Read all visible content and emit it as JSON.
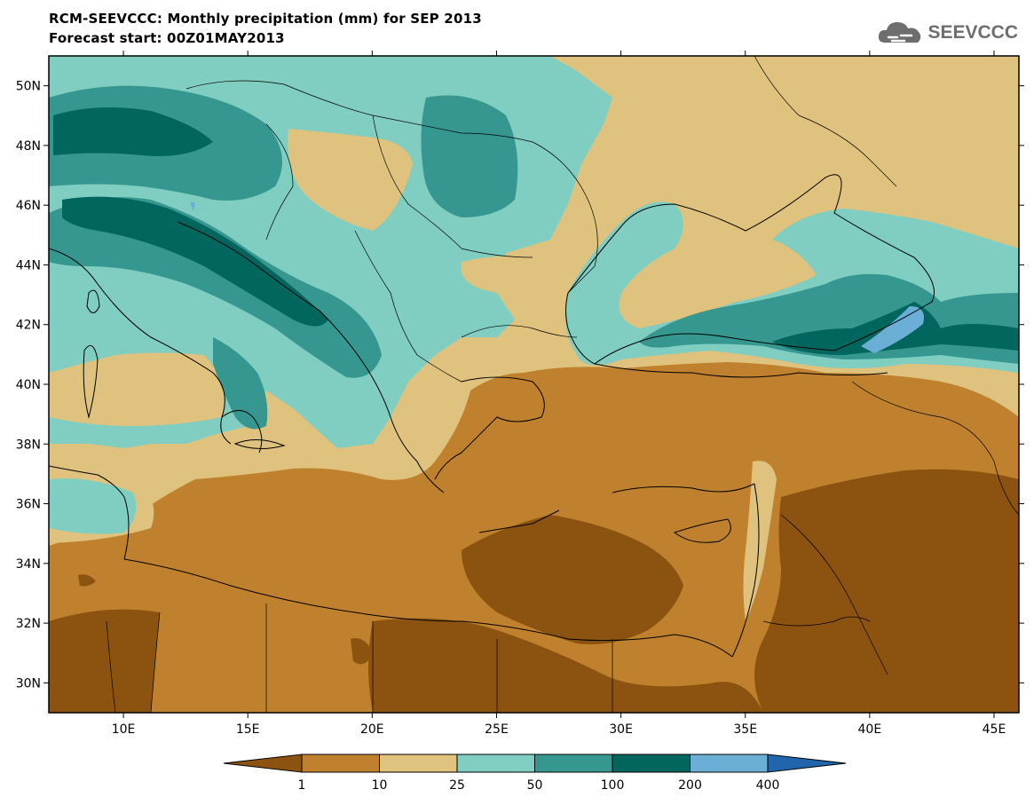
{
  "header": {
    "title": "RCM-SEEVCCC: Monthly precipitation (mm) for SEP 2013",
    "subtitle": "Forecast start: 00Z01MAY2013",
    "logo_text": "SEEVCCC"
  },
  "map": {
    "lon_range": [
      7,
      46
    ],
    "lat_range": [
      29,
      51
    ],
    "lat_ticks": [
      "50N",
      "48N",
      "46N",
      "44N",
      "42N",
      "40N",
      "38N",
      "36N",
      "34N",
      "32N",
      "30N"
    ],
    "lat_tick_values": [
      50,
      48,
      46,
      44,
      42,
      40,
      38,
      36,
      34,
      32,
      30
    ],
    "lon_ticks": [
      "10E",
      "15E",
      "20E",
      "25E",
      "30E",
      "35E",
      "40E",
      "45E"
    ],
    "lon_tick_values": [
      10,
      15,
      20,
      25,
      30,
      35,
      40,
      45
    ]
  },
  "legend": {
    "labels": [
      "1",
      "10",
      "25",
      "50",
      "100",
      "200",
      "400"
    ],
    "colors": [
      "#8c5310",
      "#bf812d",
      "#dfc27d",
      "#80cdc1",
      "#35978f",
      "#01665e",
      "#6baed6",
      "#2166ac"
    ]
  }
}
